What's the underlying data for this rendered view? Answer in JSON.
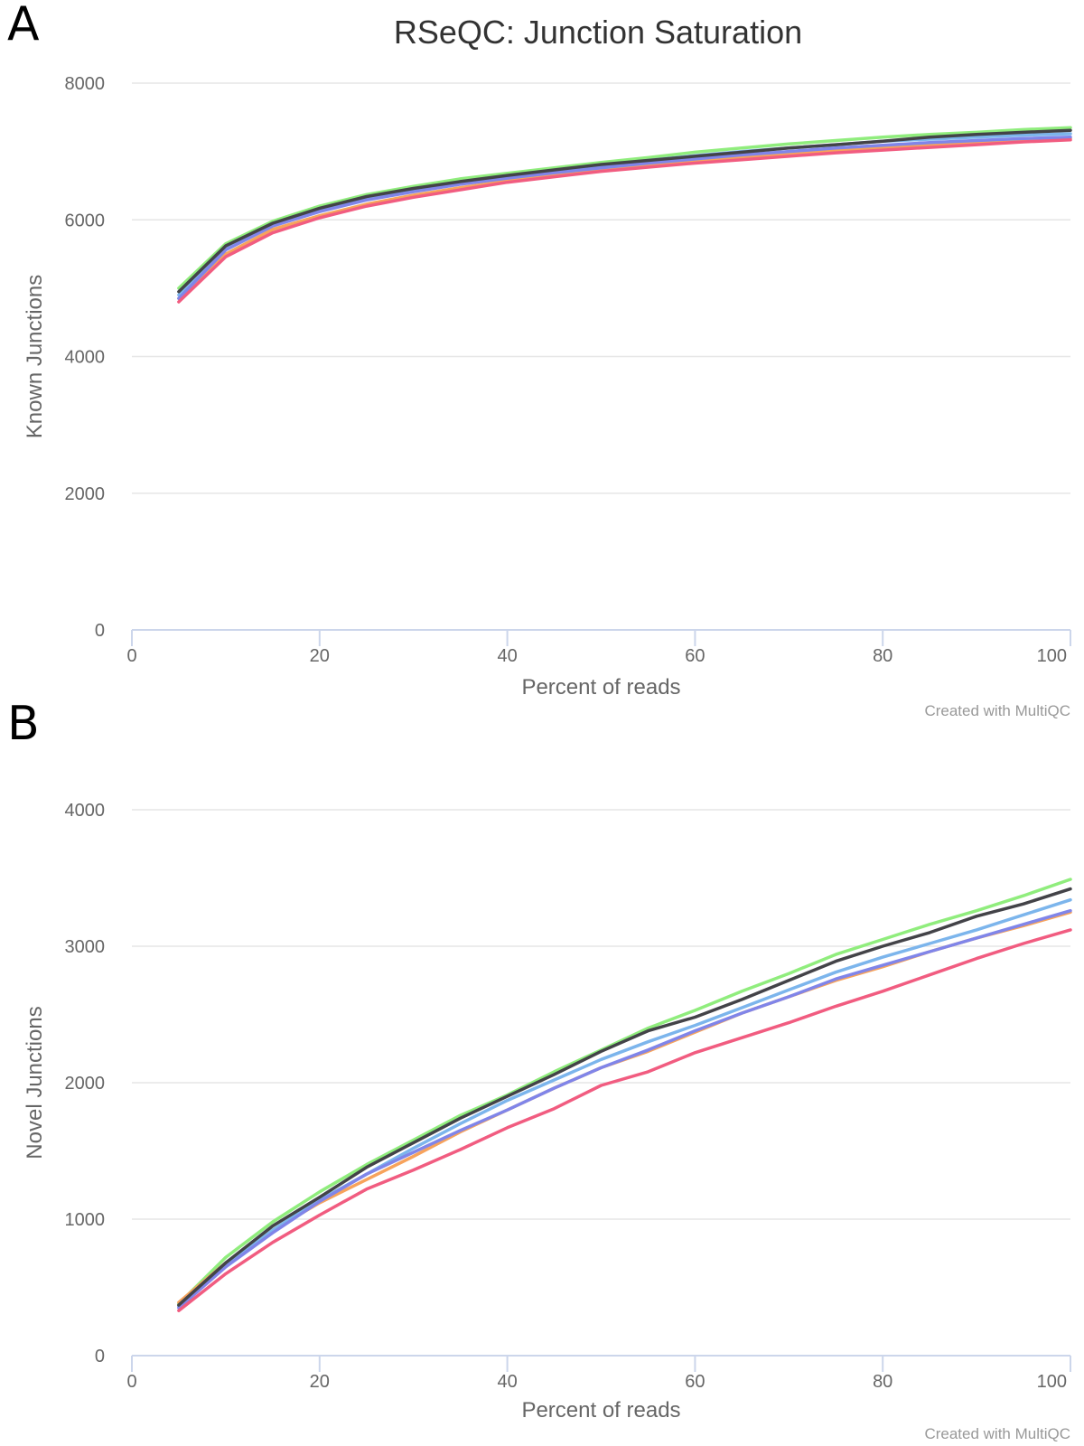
{
  "figure": {
    "panel_a_label": "A",
    "panel_b_label": "B",
    "credit": "Created with MultiQC"
  },
  "chart_data": [
    {
      "type": "line",
      "title": "RSeQC: Junction Saturation",
      "xlabel": "Percent of reads",
      "ylabel": "Known Junctions",
      "xlim": [
        0,
        100
      ],
      "ylim": [
        0,
        8000
      ],
      "xticks": [
        0,
        20,
        40,
        60,
        80,
        100
      ],
      "yticks": [
        0,
        2000,
        4000,
        6000,
        8000
      ],
      "grid": true,
      "legend": "none",
      "x": [
        5,
        10,
        15,
        20,
        25,
        30,
        35,
        40,
        45,
        50,
        55,
        60,
        65,
        70,
        75,
        80,
        85,
        90,
        95,
        100
      ],
      "series": [
        {
          "color": "#90ed7d",
          "values": [
            5000,
            5650,
            5980,
            6200,
            6370,
            6490,
            6600,
            6680,
            6760,
            6840,
            6910,
            6990,
            7050,
            7110,
            7160,
            7210,
            7250,
            7280,
            7320,
            7350
          ]
        },
        {
          "color": "#f7a35c",
          "values": [
            4850,
            5500,
            5860,
            6060,
            6230,
            6360,
            6470,
            6570,
            6650,
            6720,
            6790,
            6850,
            6910,
            6960,
            7010,
            7050,
            7090,
            7130,
            7160,
            7190
          ]
        },
        {
          "color": "#7cb5ec",
          "values": [
            4900,
            5580,
            5930,
            6140,
            6310,
            6440,
            6550,
            6640,
            6720,
            6800,
            6870,
            6940,
            7000,
            7050,
            7100,
            7150,
            7180,
            7210,
            7240,
            7260
          ]
        },
        {
          "color": "#8085e9",
          "values": [
            4850,
            5560,
            5910,
            6120,
            6290,
            6410,
            6520,
            6610,
            6690,
            6760,
            6830,
            6890,
            6950,
            7000,
            7050,
            7090,
            7130,
            7160,
            7190,
            7210
          ]
        },
        {
          "color": "#f15c80",
          "values": [
            4800,
            5460,
            5810,
            6030,
            6200,
            6330,
            6440,
            6550,
            6630,
            6710,
            6770,
            6830,
            6880,
            6930,
            6980,
            7020,
            7060,
            7100,
            7140,
            7170
          ]
        },
        {
          "color": "#434348",
          "values": [
            4950,
            5620,
            5950,
            6170,
            6340,
            6460,
            6560,
            6650,
            6730,
            6810,
            6870,
            6930,
            6990,
            7050,
            7100,
            7150,
            7210,
            7250,
            7280,
            7310
          ]
        }
      ]
    },
    {
      "type": "line",
      "title": "",
      "xlabel": "Percent of reads",
      "ylabel": "Novel Junctions",
      "xlim": [
        0,
        100
      ],
      "ylim": [
        0,
        4000
      ],
      "xticks": [
        0,
        20,
        40,
        60,
        80,
        100
      ],
      "yticks": [
        0,
        1000,
        2000,
        3000,
        4000
      ],
      "grid": true,
      "legend": "none",
      "x": [
        5,
        10,
        15,
        20,
        25,
        30,
        35,
        40,
        45,
        50,
        55,
        60,
        65,
        70,
        75,
        80,
        85,
        90,
        95,
        100
      ],
      "series": [
        {
          "color": "#90ed7d",
          "values": [
            380,
            720,
            980,
            1200,
            1400,
            1580,
            1760,
            1910,
            2080,
            2240,
            2400,
            2530,
            2670,
            2800,
            2940,
            3050,
            3160,
            3260,
            3370,
            3490
          ]
        },
        {
          "color": "#f7a35c",
          "values": [
            390,
            680,
            920,
            1120,
            1290,
            1460,
            1640,
            1800,
            1960,
            2110,
            2230,
            2370,
            2510,
            2630,
            2750,
            2850,
            2960,
            3060,
            3150,
            3250
          ]
        },
        {
          "color": "#7cb5ec",
          "values": [
            360,
            660,
            920,
            1140,
            1330,
            1520,
            1700,
            1870,
            2020,
            2170,
            2300,
            2420,
            2550,
            2680,
            2810,
            2920,
            3020,
            3120,
            3230,
            3340
          ]
        },
        {
          "color": "#8085e9",
          "values": [
            350,
            650,
            900,
            1130,
            1330,
            1490,
            1650,
            1800,
            1960,
            2110,
            2240,
            2380,
            2510,
            2630,
            2760,
            2860,
            2960,
            3060,
            3160,
            3260
          ]
        },
        {
          "color": "#f15c80",
          "values": [
            330,
            600,
            830,
            1030,
            1220,
            1360,
            1510,
            1670,
            1810,
            1980,
            2080,
            2220,
            2330,
            2440,
            2560,
            2670,
            2790,
            2910,
            3020,
            3120
          ]
        },
        {
          "color": "#434348",
          "values": [
            370,
            680,
            950,
            1160,
            1380,
            1560,
            1740,
            1900,
            2060,
            2230,
            2380,
            2480,
            2610,
            2750,
            2890,
            3000,
            3100,
            3220,
            3310,
            3420
          ]
        }
      ]
    }
  ]
}
